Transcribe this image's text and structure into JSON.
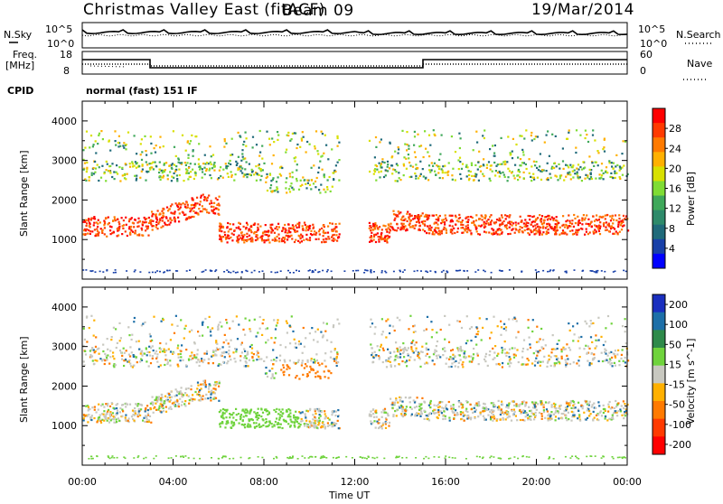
{
  "header": {
    "radar": "Christmas Valley East (fitACF)",
    "beam": "Beam 09",
    "date": "19/Mar/2014"
  },
  "noise_panel": {
    "left_label": "N.Sky",
    "right_label": "N.Search",
    "left_ticks": [
      "10^5",
      "10^0"
    ],
    "right_ticks": [
      "10^5",
      "10^0"
    ]
  },
  "freq_panel": {
    "left_label_1": "Freq.",
    "left_label_2": "[MHz]",
    "right_label": "Nave",
    "left_ticks": [
      "18",
      "8"
    ],
    "right_ticks": [
      "60",
      "0"
    ]
  },
  "cpid": {
    "label": "CPID",
    "value": "normal (fast) 151 IF"
  },
  "chart_data": [
    {
      "type": "heatmap",
      "quantity": "Power",
      "ylabel": "Slant Range [km]",
      "ylim": [
        0,
        4500
      ],
      "yticks": [
        1000,
        2000,
        3000,
        4000
      ],
      "colorbar_label": "Power [dB]",
      "colorbar_ticks": [
        "28",
        "24",
        "20",
        "16",
        "12",
        "8",
        "4"
      ],
      "colorbar_colors": [
        "#ff0000",
        "#ff3a00",
        "#ff7a00",
        "#ffb000",
        "#d8e000",
        "#7fdc34",
        "#3fa85a",
        "#2e8a6a",
        "#206a7a",
        "#1840a8",
        "#0000ff"
      ]
    },
    {
      "type": "heatmap",
      "quantity": "Velocity",
      "ylabel": "Slant Range [km]",
      "ylim": [
        0,
        4500
      ],
      "yticks": [
        1000,
        2000,
        3000,
        4000
      ],
      "colorbar_label": "Velocity [m s^-1]",
      "colorbar_ticks": [
        "200",
        "100",
        "50",
        "15",
        "-15",
        "-50",
        "-100",
        "-200"
      ],
      "colorbar_colors": [
        "#1a2fbf",
        "#1d6fa8",
        "#2e8a4a",
        "#6fd33c",
        "#c8c8c0",
        "#ffb000",
        "#ff7a00",
        "#ff3a00",
        "#ff0000"
      ]
    }
  ],
  "time_axis": {
    "label": "Time UT",
    "ticks": [
      "00:00",
      "04:00",
      "08:00",
      "12:00",
      "16:00",
      "20:00",
      "00:00"
    ]
  }
}
